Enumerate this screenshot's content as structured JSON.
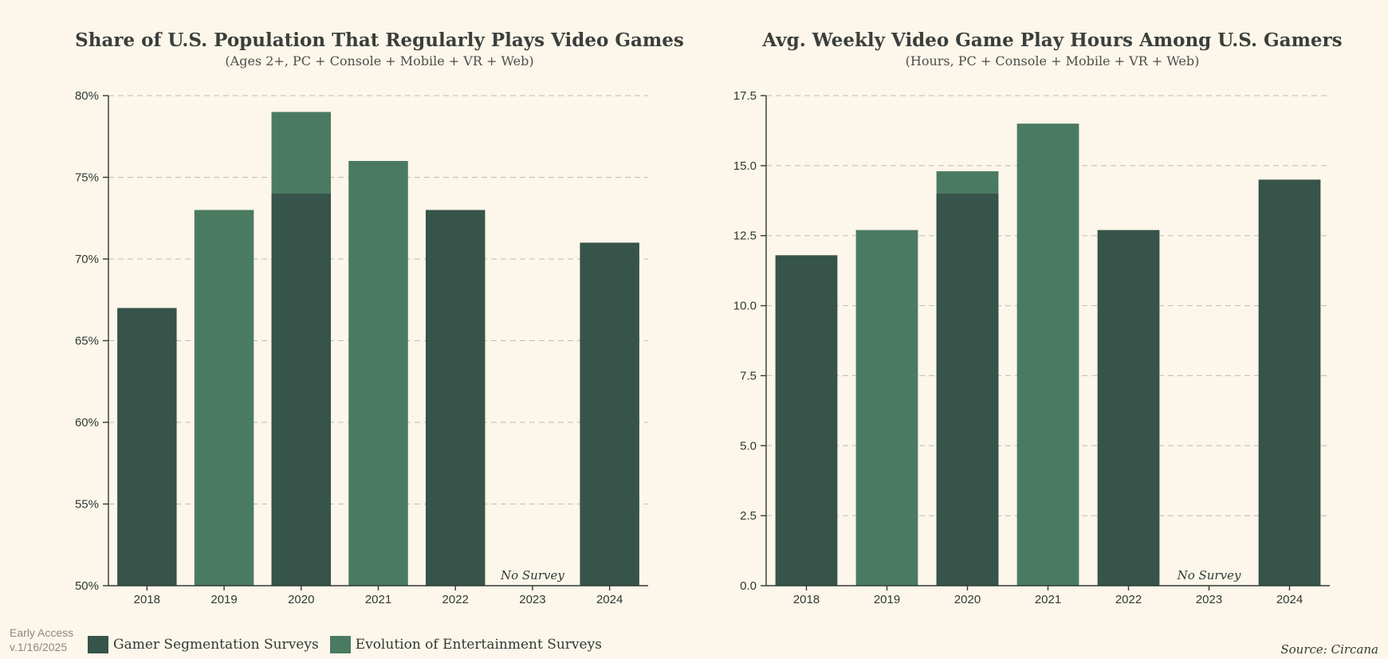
{
  "colors": {
    "gamer_segmentation": "#36544a",
    "evolution_of_entertainment": "#4b7a63"
  },
  "legend": {
    "gamer_segmentation": "Gamer Segmentation Surveys",
    "evolution_of_entertainment": "Evolution of Entertainment Surveys"
  },
  "footer": {
    "early_access": "Early Access",
    "version": "v.1/16/2025",
    "source": "Source: Circana"
  },
  "chart_data": [
    {
      "type": "bar",
      "title": "Share of U.S. Population That Regularly Plays Video Games",
      "subtitle": "(Ages 2+, PC + Console + Mobile + VR + Web)",
      "categories": [
        "2018",
        "2019",
        "2020",
        "2021",
        "2022",
        "2023",
        "2024"
      ],
      "ylim": [
        50,
        80
      ],
      "yticks": [
        50,
        55,
        60,
        65,
        70,
        75,
        80
      ],
      "ytick_labels": [
        "50%",
        "55%",
        "60%",
        "65%",
        "70%",
        "75%",
        "80%"
      ],
      "series": [
        {
          "name": "Gamer Segmentation Surveys",
          "key": "gamer_segmentation",
          "values": [
            67,
            null,
            74,
            null,
            73,
            null,
            71
          ]
        },
        {
          "name": "Evolution of Entertainment Surveys",
          "key": "evolution_of_entertainment",
          "values": [
            null,
            73,
            79,
            76,
            null,
            null,
            null
          ]
        }
      ],
      "annotations": [
        {
          "category": "2023",
          "text": "No Survey"
        }
      ]
    },
    {
      "type": "bar",
      "title": "Avg. Weekly Video Game Play Hours Among U.S. Gamers",
      "subtitle": "(Hours, PC + Console + Mobile + VR + Web)",
      "categories": [
        "2018",
        "2019",
        "2020",
        "2021",
        "2022",
        "2023",
        "2024"
      ],
      "ylim": [
        0,
        17.5
      ],
      "yticks": [
        0,
        2.5,
        5,
        7.5,
        10,
        12.5,
        15,
        17.5
      ],
      "ytick_labels": [
        "0.0",
        "2.5",
        "5.0",
        "7.5",
        "10.0",
        "12.5",
        "15.0",
        "17.5"
      ],
      "series": [
        {
          "name": "Gamer Segmentation Surveys",
          "key": "gamer_segmentation",
          "values": [
            11.8,
            null,
            14.0,
            null,
            12.7,
            null,
            14.5
          ]
        },
        {
          "name": "Evolution of Entertainment Surveys",
          "key": "evolution_of_entertainment",
          "values": [
            null,
            12.7,
            14.8,
            16.5,
            null,
            null,
            null
          ]
        }
      ],
      "annotations": [
        {
          "category": "2023",
          "text": "No Survey"
        }
      ]
    }
  ]
}
